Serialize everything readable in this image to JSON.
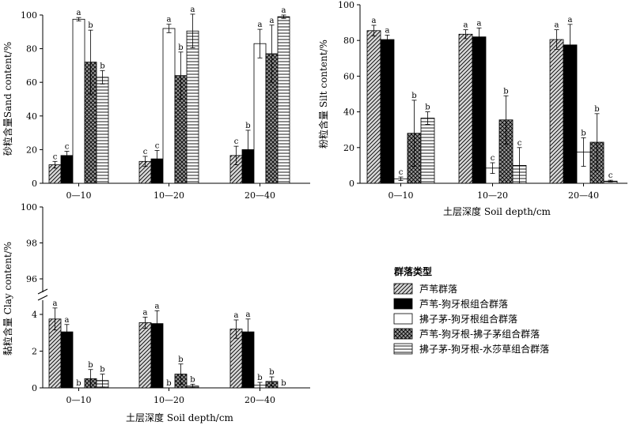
{
  "legend": {
    "title": "群落类型",
    "items": [
      {
        "label": "芦苇群落",
        "pattern": "diag"
      },
      {
        "label": "芦苇-狗牙根组合群落",
        "pattern": "solid"
      },
      {
        "label": "拂子茅-狗牙根组合群落",
        "pattern": "empty"
      },
      {
        "label": "芦苇-狗牙根-拂子茅组合群落",
        "pattern": "cross"
      },
      {
        "label": "拂子茅-狗牙根-水莎草组合群落",
        "pattern": "horiz"
      }
    ]
  },
  "chart_data": [
    {
      "type": "bar",
      "ylabel": "砂粒含量Sand content/%",
      "xlabel": "",
      "ylim": [
        0,
        100
      ],
      "yticks": [
        0,
        20,
        40,
        60,
        80,
        100
      ],
      "categories": [
        "0—10",
        "10—20",
        "20—40"
      ],
      "series": [
        {
          "name": "芦苇群落",
          "values": [
            11,
            13,
            16.5
          ],
          "errors": [
            2,
            3,
            5.5
          ],
          "letters": [
            "c",
            "c",
            "c"
          ]
        },
        {
          "name": "芦苇-狗牙根组合群落",
          "values": [
            16.5,
            14.5,
            20
          ],
          "errors": [
            2.5,
            5,
            11.5
          ],
          "letters": [
            "c",
            "c",
            "b"
          ]
        },
        {
          "name": "拂子茅-狗牙根组合群落",
          "values": [
            97.5,
            92,
            83
          ],
          "errors": [
            1,
            2.5,
            8.5
          ],
          "letters": [
            "a",
            "a",
            "a"
          ]
        },
        {
          "name": "芦苇-狗牙根-拂子茅组合群落",
          "values": [
            72,
            64,
            77
          ],
          "errors": [
            19,
            14,
            17
          ],
          "letters": [
            "b",
            "b",
            "a"
          ]
        },
        {
          "name": "拂子茅-狗牙根-水莎草组合群落",
          "values": [
            63,
            90.5,
            99
          ],
          "errors": [
            4,
            10,
            1
          ],
          "letters": [
            "b",
            "a",
            "a"
          ]
        }
      ]
    },
    {
      "type": "bar",
      "ylabel": "粉粒含量 Silt content/%",
      "xlabel": "土层深度 Soil depth/cm",
      "ylim": [
        0,
        100
      ],
      "yticks": [
        0,
        20,
        40,
        60,
        80,
        100
      ],
      "categories": [
        "0—10",
        "10—20",
        "20—40"
      ],
      "series": [
        {
          "name": "芦苇群落",
          "values": [
            85.5,
            83.5,
            80.5
          ],
          "errors": [
            3,
            2.5,
            5.5
          ],
          "letters": [
            "a",
            "a",
            "a"
          ]
        },
        {
          "name": "芦苇-狗牙根组合群落",
          "values": [
            80.5,
            82,
            77.5
          ],
          "errors": [
            2.5,
            5,
            11.5
          ],
          "letters": [
            "a",
            "a",
            "a"
          ]
        },
        {
          "name": "拂子茅-狗牙根组合群落",
          "values": [
            2.5,
            8.5,
            17.5
          ],
          "errors": [
            1,
            3,
            8
          ],
          "letters": [
            "c",
            "c",
            "b"
          ]
        },
        {
          "name": "芦苇-狗牙根-拂子茅组合群落",
          "values": [
            28,
            35.5,
            23
          ],
          "errors": [
            18.5,
            13.5,
            16
          ],
          "letters": [
            "b",
            "b",
            "b"
          ]
        },
        {
          "name": "拂子茅-狗牙根-水莎草组合群落",
          "values": [
            36.5,
            10,
            1.2
          ],
          "errors": [
            3.5,
            10,
            0.5
          ],
          "letters": [
            "b",
            "c",
            "c"
          ]
        }
      ]
    },
    {
      "type": "bar",
      "ylabel": "黏粒含量 Clay content/%",
      "xlabel": "土层深度 Soil depth/cm",
      "yticks": [
        0,
        2,
        4,
        96,
        98,
        100
      ],
      "axis_break": true,
      "categories": [
        "0—10",
        "10—20",
        "20—40"
      ],
      "series": [
        {
          "name": "芦苇群落",
          "values": [
            3.75,
            3.55,
            3.2
          ],
          "errors": [
            0.6,
            0.3,
            0.5
          ],
          "letters": [
            "a",
            "a",
            "a"
          ]
        },
        {
          "name": "芦苇-狗牙根组合群落",
          "values": [
            3.05,
            3.5,
            3.05
          ],
          "errors": [
            0.4,
            0.7,
            0.7
          ],
          "letters": [
            "a",
            "a",
            "a"
          ]
        },
        {
          "name": "拂子茅-狗牙根组合群落",
          "values": [
            0,
            0,
            0.15
          ],
          "errors": [
            0,
            0,
            0.15
          ],
          "letters": [
            "b",
            "b",
            "b"
          ]
        },
        {
          "name": "芦苇-狗牙根-拂子茅组合群落",
          "values": [
            0.5,
            0.75,
            0.35
          ],
          "errors": [
            0.5,
            0.55,
            0.25
          ],
          "letters": [
            "b",
            "b",
            "b"
          ]
        },
        {
          "name": "拂子茅-狗牙根-水莎草组合群落",
          "values": [
            0.4,
            0.1,
            0
          ],
          "errors": [
            0.35,
            0.1,
            0
          ],
          "letters": [
            "b",
            "b",
            "b"
          ]
        }
      ]
    }
  ]
}
